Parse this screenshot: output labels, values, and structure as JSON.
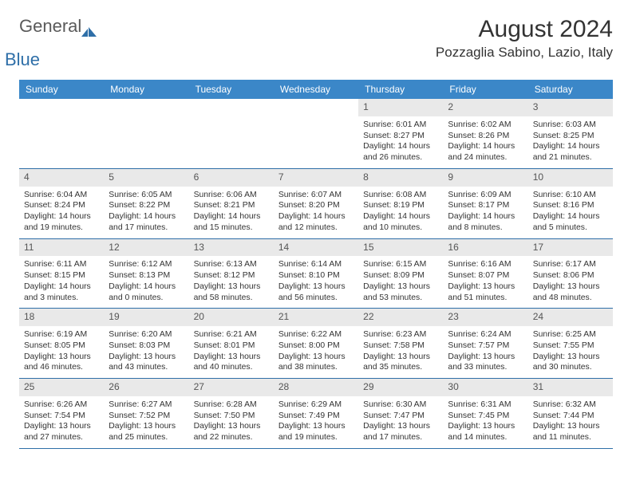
{
  "brand": {
    "text1": "General",
    "text2": "Blue"
  },
  "title": "August 2024",
  "location": "Pozzaglia Sabino, Lazio, Italy",
  "colors": {
    "header_bg": "#3b87c8",
    "header_text": "#ffffff",
    "daynum_bg": "#e9e9e9",
    "border": "#2f6fa8",
    "text": "#333333",
    "brand_gray": "#5a5a5a",
    "brand_blue": "#2f6fa8",
    "page_bg": "#ffffff"
  },
  "typography": {
    "title_fontsize": 30,
    "location_fontsize": 17,
    "dayhead_fontsize": 12,
    "cell_fontsize": 10.4
  },
  "day_labels": [
    "Sunday",
    "Monday",
    "Tuesday",
    "Wednesday",
    "Thursday",
    "Friday",
    "Saturday"
  ],
  "weeks": [
    [
      {
        "day": "",
        "sunrise": "",
        "sunset": "",
        "daylight": ""
      },
      {
        "day": "",
        "sunrise": "",
        "sunset": "",
        "daylight": ""
      },
      {
        "day": "",
        "sunrise": "",
        "sunset": "",
        "daylight": ""
      },
      {
        "day": "",
        "sunrise": "",
        "sunset": "",
        "daylight": ""
      },
      {
        "day": "1",
        "sunrise": "Sunrise: 6:01 AM",
        "sunset": "Sunset: 8:27 PM",
        "daylight": "Daylight: 14 hours and 26 minutes."
      },
      {
        "day": "2",
        "sunrise": "Sunrise: 6:02 AM",
        "sunset": "Sunset: 8:26 PM",
        "daylight": "Daylight: 14 hours and 24 minutes."
      },
      {
        "day": "3",
        "sunrise": "Sunrise: 6:03 AM",
        "sunset": "Sunset: 8:25 PM",
        "daylight": "Daylight: 14 hours and 21 minutes."
      }
    ],
    [
      {
        "day": "4",
        "sunrise": "Sunrise: 6:04 AM",
        "sunset": "Sunset: 8:24 PM",
        "daylight": "Daylight: 14 hours and 19 minutes."
      },
      {
        "day": "5",
        "sunrise": "Sunrise: 6:05 AM",
        "sunset": "Sunset: 8:22 PM",
        "daylight": "Daylight: 14 hours and 17 minutes."
      },
      {
        "day": "6",
        "sunrise": "Sunrise: 6:06 AM",
        "sunset": "Sunset: 8:21 PM",
        "daylight": "Daylight: 14 hours and 15 minutes."
      },
      {
        "day": "7",
        "sunrise": "Sunrise: 6:07 AM",
        "sunset": "Sunset: 8:20 PM",
        "daylight": "Daylight: 14 hours and 12 minutes."
      },
      {
        "day": "8",
        "sunrise": "Sunrise: 6:08 AM",
        "sunset": "Sunset: 8:19 PM",
        "daylight": "Daylight: 14 hours and 10 minutes."
      },
      {
        "day": "9",
        "sunrise": "Sunrise: 6:09 AM",
        "sunset": "Sunset: 8:17 PM",
        "daylight": "Daylight: 14 hours and 8 minutes."
      },
      {
        "day": "10",
        "sunrise": "Sunrise: 6:10 AM",
        "sunset": "Sunset: 8:16 PM",
        "daylight": "Daylight: 14 hours and 5 minutes."
      }
    ],
    [
      {
        "day": "11",
        "sunrise": "Sunrise: 6:11 AM",
        "sunset": "Sunset: 8:15 PM",
        "daylight": "Daylight: 14 hours and 3 minutes."
      },
      {
        "day": "12",
        "sunrise": "Sunrise: 6:12 AM",
        "sunset": "Sunset: 8:13 PM",
        "daylight": "Daylight: 14 hours and 0 minutes."
      },
      {
        "day": "13",
        "sunrise": "Sunrise: 6:13 AM",
        "sunset": "Sunset: 8:12 PM",
        "daylight": "Daylight: 13 hours and 58 minutes."
      },
      {
        "day": "14",
        "sunrise": "Sunrise: 6:14 AM",
        "sunset": "Sunset: 8:10 PM",
        "daylight": "Daylight: 13 hours and 56 minutes."
      },
      {
        "day": "15",
        "sunrise": "Sunrise: 6:15 AM",
        "sunset": "Sunset: 8:09 PM",
        "daylight": "Daylight: 13 hours and 53 minutes."
      },
      {
        "day": "16",
        "sunrise": "Sunrise: 6:16 AM",
        "sunset": "Sunset: 8:07 PM",
        "daylight": "Daylight: 13 hours and 51 minutes."
      },
      {
        "day": "17",
        "sunrise": "Sunrise: 6:17 AM",
        "sunset": "Sunset: 8:06 PM",
        "daylight": "Daylight: 13 hours and 48 minutes."
      }
    ],
    [
      {
        "day": "18",
        "sunrise": "Sunrise: 6:19 AM",
        "sunset": "Sunset: 8:05 PM",
        "daylight": "Daylight: 13 hours and 46 minutes."
      },
      {
        "day": "19",
        "sunrise": "Sunrise: 6:20 AM",
        "sunset": "Sunset: 8:03 PM",
        "daylight": "Daylight: 13 hours and 43 minutes."
      },
      {
        "day": "20",
        "sunrise": "Sunrise: 6:21 AM",
        "sunset": "Sunset: 8:01 PM",
        "daylight": "Daylight: 13 hours and 40 minutes."
      },
      {
        "day": "21",
        "sunrise": "Sunrise: 6:22 AM",
        "sunset": "Sunset: 8:00 PM",
        "daylight": "Daylight: 13 hours and 38 minutes."
      },
      {
        "day": "22",
        "sunrise": "Sunrise: 6:23 AM",
        "sunset": "Sunset: 7:58 PM",
        "daylight": "Daylight: 13 hours and 35 minutes."
      },
      {
        "day": "23",
        "sunrise": "Sunrise: 6:24 AM",
        "sunset": "Sunset: 7:57 PM",
        "daylight": "Daylight: 13 hours and 33 minutes."
      },
      {
        "day": "24",
        "sunrise": "Sunrise: 6:25 AM",
        "sunset": "Sunset: 7:55 PM",
        "daylight": "Daylight: 13 hours and 30 minutes."
      }
    ],
    [
      {
        "day": "25",
        "sunrise": "Sunrise: 6:26 AM",
        "sunset": "Sunset: 7:54 PM",
        "daylight": "Daylight: 13 hours and 27 minutes."
      },
      {
        "day": "26",
        "sunrise": "Sunrise: 6:27 AM",
        "sunset": "Sunset: 7:52 PM",
        "daylight": "Daylight: 13 hours and 25 minutes."
      },
      {
        "day": "27",
        "sunrise": "Sunrise: 6:28 AM",
        "sunset": "Sunset: 7:50 PM",
        "daylight": "Daylight: 13 hours and 22 minutes."
      },
      {
        "day": "28",
        "sunrise": "Sunrise: 6:29 AM",
        "sunset": "Sunset: 7:49 PM",
        "daylight": "Daylight: 13 hours and 19 minutes."
      },
      {
        "day": "29",
        "sunrise": "Sunrise: 6:30 AM",
        "sunset": "Sunset: 7:47 PM",
        "daylight": "Daylight: 13 hours and 17 minutes."
      },
      {
        "day": "30",
        "sunrise": "Sunrise: 6:31 AM",
        "sunset": "Sunset: 7:45 PM",
        "daylight": "Daylight: 13 hours and 14 minutes."
      },
      {
        "day": "31",
        "sunrise": "Sunrise: 6:32 AM",
        "sunset": "Sunset: 7:44 PM",
        "daylight": "Daylight: 13 hours and 11 minutes."
      }
    ]
  ]
}
